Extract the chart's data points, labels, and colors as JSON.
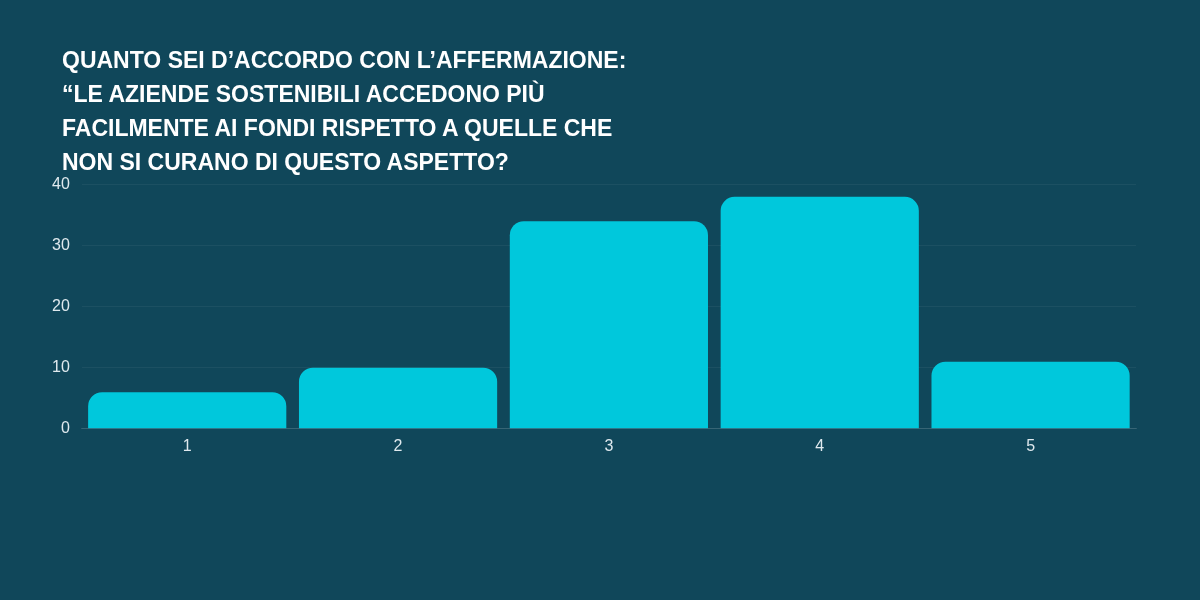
{
  "chart_data": {
    "type": "bar",
    "title": "QUANTO SEI D’ACCORDO CON L’AFFERMAZIONE: “LE AZIENDE SOSTENIBILI ACCEDONO PIÙ FACILMENTE AI FONDI RISPETTO A QUELLE CHE NON SI CURANO DI QUESTO ASPETTO?",
    "categories": [
      "1",
      "2",
      "3",
      "4",
      "5"
    ],
    "values": [
      6,
      10,
      34,
      38,
      11
    ],
    "color": "#00c8dc",
    "ylim": [
      0,
      40
    ],
    "yticks": [
      0,
      10,
      20,
      30,
      40
    ],
    "grid": "y"
  }
}
